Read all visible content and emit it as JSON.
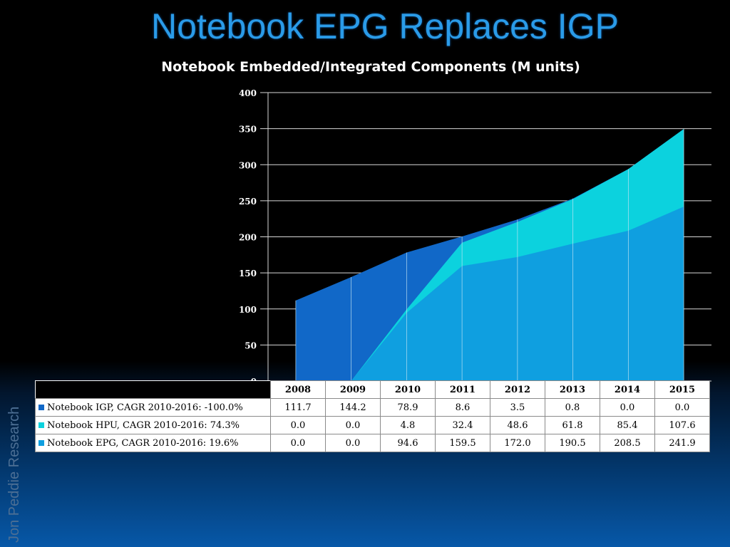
{
  "slide_title": "Notebook EPG Replaces IGP",
  "watermark": "Jon Peddie Research",
  "colors": {
    "igp": "#1168c8",
    "hpu": "#0cd2de",
    "epg": "#0f9fe0"
  },
  "chart_data": {
    "type": "area",
    "stacked": true,
    "title": "Notebook Embedded/Integrated Components (M units)",
    "categories": [
      "2008",
      "2009",
      "2010",
      "2011",
      "2012",
      "2013",
      "2014",
      "2015"
    ],
    "yticks": [
      "0",
      "50",
      "100",
      "150",
      "200",
      "250",
      "300",
      "350",
      "400"
    ],
    "ylim": [
      0,
      400
    ],
    "grid": true,
    "series": [
      {
        "key": "epg",
        "name": "Notebook EPG, CAGR 2010-2016: 19.6%",
        "values": [
          0.0,
          0.0,
          94.6,
          159.5,
          172.0,
          190.5,
          208.5,
          241.9
        ],
        "display": [
          "0.0",
          "0.0",
          "94.6",
          "159.5",
          "172.0",
          "190.5",
          "208.5",
          "241.9"
        ]
      },
      {
        "key": "hpu",
        "name": "Notebook HPU, CAGR 2010-2016: 74.3%",
        "values": [
          0.0,
          0.0,
          4.8,
          32.4,
          48.6,
          61.8,
          85.4,
          107.6
        ],
        "display": [
          "0.0",
          "0.0",
          "4.8",
          "32.4",
          "48.6",
          "61.8",
          "85.4",
          "107.6"
        ]
      },
      {
        "key": "igp",
        "name": "Notebook IGP, CAGR 2010-2016: -100.0%",
        "values": [
          111.7,
          144.2,
          78.9,
          8.6,
          3.5,
          0.8,
          0.0,
          0.0
        ],
        "display": [
          "111.7",
          "144.2",
          "78.9",
          "8.6",
          "3.5",
          "0.8",
          "0.0",
          "0.0"
        ]
      }
    ],
    "table_row_order": [
      "igp",
      "hpu",
      "epg"
    ]
  }
}
